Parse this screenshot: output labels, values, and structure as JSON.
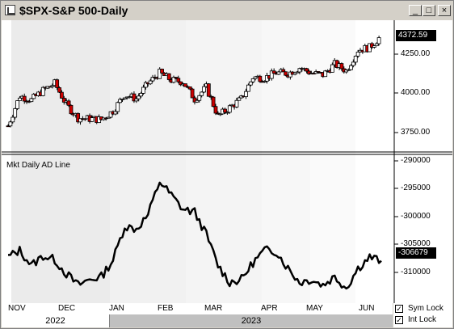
{
  "window": {
    "title": "$SPX-S&P 500-Daily",
    "controls": [
      "_",
      "□",
      "×"
    ]
  },
  "price_panel": {
    "current_value": "4372.59",
    "y_ticks": [
      "4250.00",
      "4000.00",
      "3750.00"
    ],
    "up_color": "#ffffff",
    "down_color": "#cc0000"
  },
  "indicator_panel": {
    "label": "Mkt Daily AD Line",
    "current_value": "-306679",
    "y_ticks": [
      "-290000",
      "-295000",
      "-300000",
      "-305000",
      "-310000"
    ]
  },
  "x_axis": {
    "months": [
      "NOV",
      "DEC",
      "JAN",
      "FEB",
      "MAR",
      "APR",
      "MAY",
      "JUN"
    ],
    "years": [
      "2022",
      "2023"
    ]
  },
  "checkboxes": [
    {
      "label": "Sym Lock",
      "checked": true
    },
    {
      "label": "Int Lock",
      "checked": true
    }
  ],
  "chart_data": [
    {
      "type": "candlestick",
      "title": "$SPX-S&P 500-Daily",
      "ylim": [
        3660,
        4430
      ],
      "x": [
        "2022-10-31",
        "2022-11-07",
        "2022-11-14",
        "2022-11-21",
        "2022-11-28",
        "2022-12-05",
        "2022-12-12",
        "2022-12-19",
        "2022-12-26",
        "2023-01-02",
        "2023-01-09",
        "2023-01-16",
        "2023-01-23",
        "2023-01-30",
        "2023-02-06",
        "2023-02-13",
        "2023-02-20",
        "2023-02-27",
        "2023-03-06",
        "2023-03-13",
        "2023-03-20",
        "2023-03-27",
        "2023-04-03",
        "2023-04-10",
        "2023-04-17",
        "2023-04-24",
        "2023-05-01",
        "2023-05-08",
        "2023-05-15",
        "2023-05-22",
        "2023-05-29",
        "2023-06-05",
        "2023-06-12"
      ],
      "close": [
        3800,
        3990,
        3965,
        4025,
        4070,
        3935,
        3850,
        3845,
        3840,
        3895,
        3999,
        3972,
        4070,
        4136,
        4090,
        4080,
        3970,
        4045,
        3861,
        3916,
        3971,
        4109,
        4105,
        4137,
        4133,
        4169,
        4136,
        4124,
        4192,
        4151,
        4282,
        4298,
        4372
      ]
    },
    {
      "type": "line",
      "ylim": [
        -313500,
        -288000
      ],
      "x": [
        "2022-10-31",
        "2022-11-07",
        "2022-11-14",
        "2022-11-21",
        "2022-11-28",
        "2022-12-05",
        "2022-12-12",
        "2022-12-19",
        "2022-12-26",
        "2023-01-02",
        "2023-01-09",
        "2023-01-16",
        "2023-01-23",
        "2023-01-30",
        "2023-02-06",
        "2023-02-13",
        "2023-02-20",
        "2023-02-27",
        "2023-03-06",
        "2023-03-13",
        "2023-03-20",
        "2023-03-27",
        "2023-04-03",
        "2023-04-10",
        "2023-04-17",
        "2023-04-24",
        "2023-05-01",
        "2023-05-08",
        "2023-05-15",
        "2023-05-22",
        "2023-05-29",
        "2023-06-05",
        "2023-06-12"
      ],
      "values": [
        -306000,
        -304800,
        -307500,
        -305800,
        -306500,
        -309000,
        -311000,
        -310000,
        -309500,
        -306500,
        -300500,
        -301000,
        -298500,
        -292500,
        -295000,
        -297500,
        -298000,
        -302000,
        -307500,
        -310500,
        -310000,
        -307000,
        -304800,
        -305000,
        -308000,
        -310500,
        -310000,
        -311000,
        -309500,
        -311500,
        -308000,
        -306000,
        -306679
      ]
    }
  ]
}
